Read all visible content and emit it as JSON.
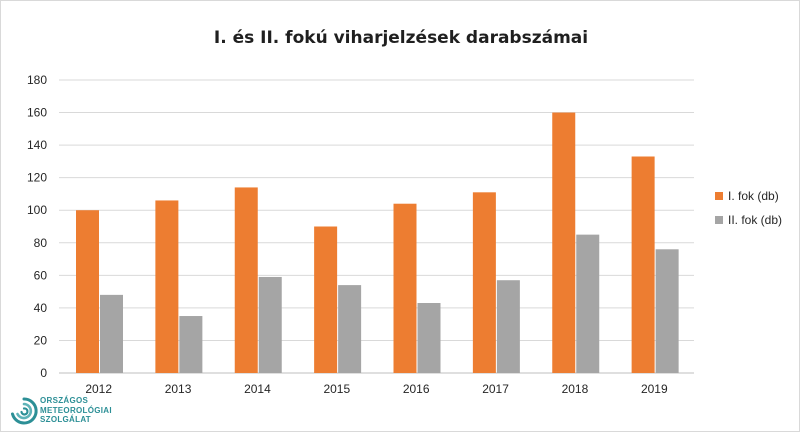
{
  "chart_data": {
    "type": "bar",
    "title": "I. és II. fokú viharjelzések darabszámai",
    "categories": [
      "2012",
      "2013",
      "2014",
      "2015",
      "2016",
      "2017",
      "2018",
      "2019"
    ],
    "series": [
      {
        "name": "I. fok (db)",
        "color": "#ed7d31",
        "values": [
          100,
          106,
          114,
          90,
          104,
          111,
          160,
          133
        ]
      },
      {
        "name": "II. fok (db)",
        "color": "#a5a5a5",
        "values": [
          48,
          35,
          59,
          54,
          43,
          57,
          85,
          76
        ]
      }
    ],
    "ylim": [
      0,
      180
    ],
    "yticks": [
      0,
      20,
      40,
      60,
      80,
      100,
      120,
      140,
      160,
      180
    ],
    "ytick_labels": [
      "0",
      "20",
      "40",
      "60",
      "80",
      "100",
      "120",
      "140",
      "160",
      "180"
    ],
    "grid": true,
    "legend_position": "right"
  },
  "logo": {
    "icon": "swirl-logo-icon",
    "color": "#2c8f96",
    "lines": [
      "ORSZÁGOS",
      "METEOROLÓGIAI",
      "SZOLGÁLAT"
    ]
  }
}
